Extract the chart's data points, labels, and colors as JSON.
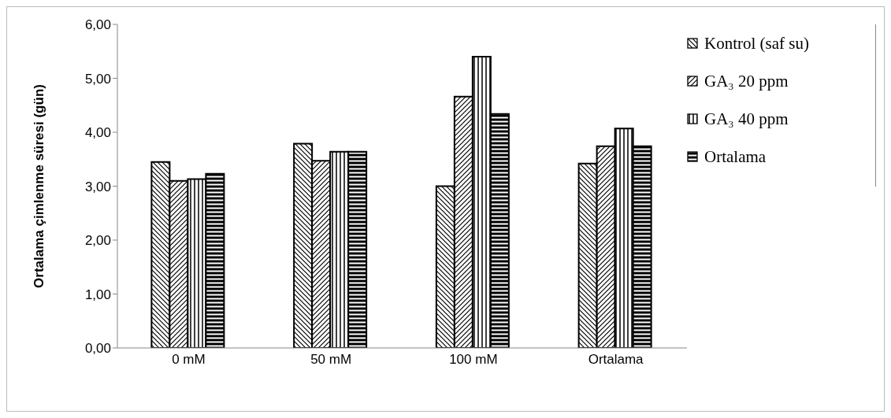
{
  "chart_data": {
    "type": "bar",
    "ylabel": "Ortalama çimlenme süresi (gün)",
    "categories": [
      "0 mM",
      "50 mM",
      "100 mM",
      "Ortalama"
    ],
    "series": [
      {
        "name": "Kontrol (saf su)",
        "color": "#000000",
        "values": [
          3.45,
          3.79,
          3.0,
          3.42
        ]
      },
      {
        "name": "GA₃ 20 ppm",
        "color": "#000000",
        "values": [
          3.1,
          3.47,
          4.66,
          3.74
        ]
      },
      {
        "name": "GA₃ 40 ppm",
        "color": "#000000",
        "values": [
          3.13,
          3.64,
          5.4,
          4.07
        ]
      },
      {
        "name": "Ortalama",
        "color": "#000000",
        "values": [
          3.23,
          3.64,
          4.34,
          3.74
        ]
      }
    ],
    "ylim": [
      0,
      6
    ],
    "yticks": [
      {
        "value": 0,
        "label": "0,00"
      },
      {
        "value": 1,
        "label": "1,00"
      },
      {
        "value": 2,
        "label": "2,00"
      },
      {
        "value": 3,
        "label": "3,00"
      },
      {
        "value": 4,
        "label": "4,00"
      },
      {
        "value": 5,
        "label": "5,00"
      },
      {
        "value": 6,
        "label": "6,00"
      }
    ],
    "grid": false,
    "legend": "top right"
  }
}
